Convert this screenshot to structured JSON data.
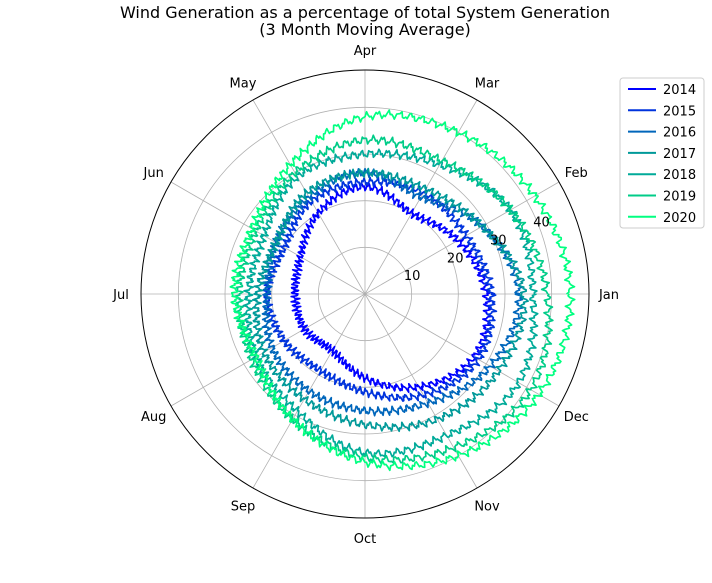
{
  "chart_data": {
    "type": "line",
    "projection": "polar",
    "title": "Wind Generation as a percentage of total System Generation",
    "subtitle": "(3 Month Moving Average)",
    "theta_labels": [
      "Jan",
      "Feb",
      "Mar",
      "Apr",
      "May",
      "Jun",
      "Jul",
      "Aug",
      "Sep",
      "Oct",
      "Nov",
      "Dec"
    ],
    "theta_direction": "counter-clockwise",
    "theta_zero": "east",
    "r_ticks": [
      10,
      20,
      30,
      40
    ],
    "r_tick_labels": [
      "10",
      "20",
      "30",
      "40"
    ],
    "rlim": [
      0,
      48
    ],
    "grid": true,
    "legend_position": "upper right, outside plot",
    "categories": [
      "Jan",
      "Feb",
      "Mar",
      "Apr",
      "May",
      "Jun",
      "Jul",
      "Aug",
      "Sep",
      "Oct",
      "Nov",
      "Dec"
    ],
    "series": [
      {
        "name": "2014",
        "color": "#0000ff",
        "values": [
          26,
          23,
          20,
          23,
          20,
          16,
          15,
          15,
          14,
          18,
          23,
          27
        ]
      },
      {
        "name": "2015",
        "color": "#0033dd",
        "values": [
          27,
          25,
          25,
          24,
          23,
          20,
          21,
          20,
          19,
          21,
          25,
          28
        ]
      },
      {
        "name": "2016",
        "color": "#0066bb",
        "values": [
          33,
          29,
          24,
          26,
          24,
          22,
          21,
          23,
          24,
          25,
          27,
          31
        ]
      },
      {
        "name": "2017",
        "color": "#009999",
        "values": [
          34,
          29,
          26,
          26,
          25,
          22,
          23,
          25,
          26,
          28,
          31,
          33
        ]
      },
      {
        "name": "2018",
        "color": "#00aa99",
        "values": [
          36,
          36,
          32,
          30,
          29,
          25,
          25,
          27,
          29,
          34,
          35,
          38
        ]
      },
      {
        "name": "2019",
        "color": "#00cc88",
        "values": [
          39,
          36,
          33,
          33,
          30,
          27,
          27,
          28,
          31,
          35,
          38,
          41
        ]
      },
      {
        "name": "2020",
        "color": "#00ff80",
        "values": [
          44,
          42,
          40,
          38,
          32,
          28,
          28,
          27,
          31,
          36,
          40,
          43
        ]
      }
    ]
  }
}
